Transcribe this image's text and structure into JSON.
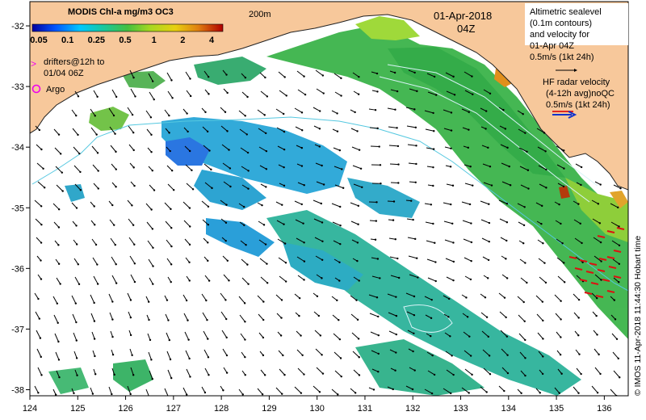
{
  "colors": {
    "land": "#f7c89b",
    "ocean": "#ffffff",
    "text": "#000000",
    "arrow": "#000000",
    "hf_arrow": "#dd1111",
    "drifter": "#ee00ee",
    "argo": "#ee00ee",
    "radar_blue": "#1133cc",
    "contour": "#c8eef5"
  },
  "colorbar": {
    "title": "MODIS Chl-a mg/m3 OC3",
    "ticks": [
      "0.05",
      "0.1",
      "0.25",
      "0.5",
      "1",
      "2",
      "4"
    ],
    "gradient": [
      "#0000a0",
      "#0055ff",
      "#00c8ff",
      "#18c8a0",
      "#44c040",
      "#a8d820",
      "#e8d010",
      "#e08010",
      "#b00000"
    ]
  },
  "labels": {
    "isobath": "200m",
    "date": "01-Apr-2018",
    "time": "04Z",
    "drifters_line1": "drifters@12h to",
    "drifters_line2": "01/04 06Z",
    "drifter_symbol": ">",
    "argo": "Argo",
    "argo_symbol": "O"
  },
  "legend": {
    "alt_lines": [
      "Altimetric sealevel",
      "(0.1m contours)",
      "and velocity for",
      "01-Apr 04Z",
      "0.5m/s (1kt 24h)"
    ],
    "hf_lines": [
      "HF radar velocity",
      "(4-12h avg)noQC",
      "0.5m/s (1kt 24h)"
    ]
  },
  "credit": "© IMOS 11-Apr-2018 11:44:30 Hobart time",
  "axes": {
    "x_ticks": [
      "124",
      "125",
      "126",
      "127",
      "128",
      "129",
      "130",
      "131",
      "132",
      "133",
      "134",
      "135",
      "136"
    ],
    "y_ticks": [
      "-32",
      "-33",
      "-34",
      "-35",
      "-36",
      "-37",
      "-38"
    ],
    "lon_range": [
      124,
      136.5
    ],
    "lat_range": [
      -38.1,
      -31.6
    ]
  }
}
